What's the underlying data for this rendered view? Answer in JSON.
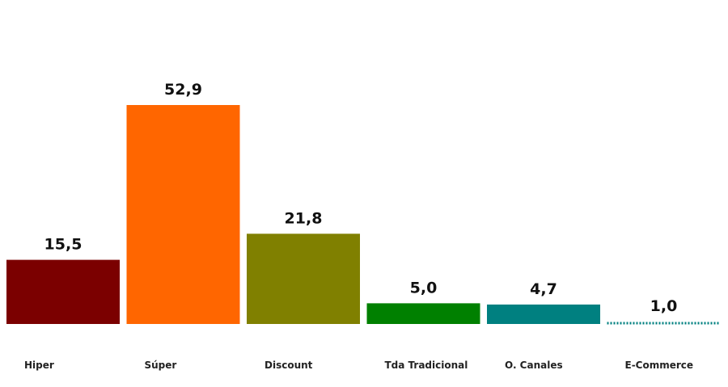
{
  "chart_data": {
    "type": "bar",
    "categories": [
      "Hiper",
      "Súper",
      "Discount",
      "Tda Tradicional",
      "O. Canales",
      "E-Commerce"
    ],
    "values": [
      15.5,
      52.9,
      21.8,
      5.0,
      4.7,
      1.0
    ],
    "value_labels": [
      "15,5",
      "52,9",
      "21,8",
      "5,0",
      "4,7",
      "1,0"
    ],
    "colors": [
      "#7b0000",
      "#ff6600",
      "#808000",
      "#008000",
      "#008080",
      "#008080"
    ],
    "bar_style": [
      "solid",
      "solid",
      "solid",
      "solid",
      "solid",
      "dotted"
    ],
    "title": "",
    "xlabel": "",
    "ylabel": "",
    "ylim": [
      0,
      52.9
    ],
    "grid": false,
    "legend": "none"
  }
}
